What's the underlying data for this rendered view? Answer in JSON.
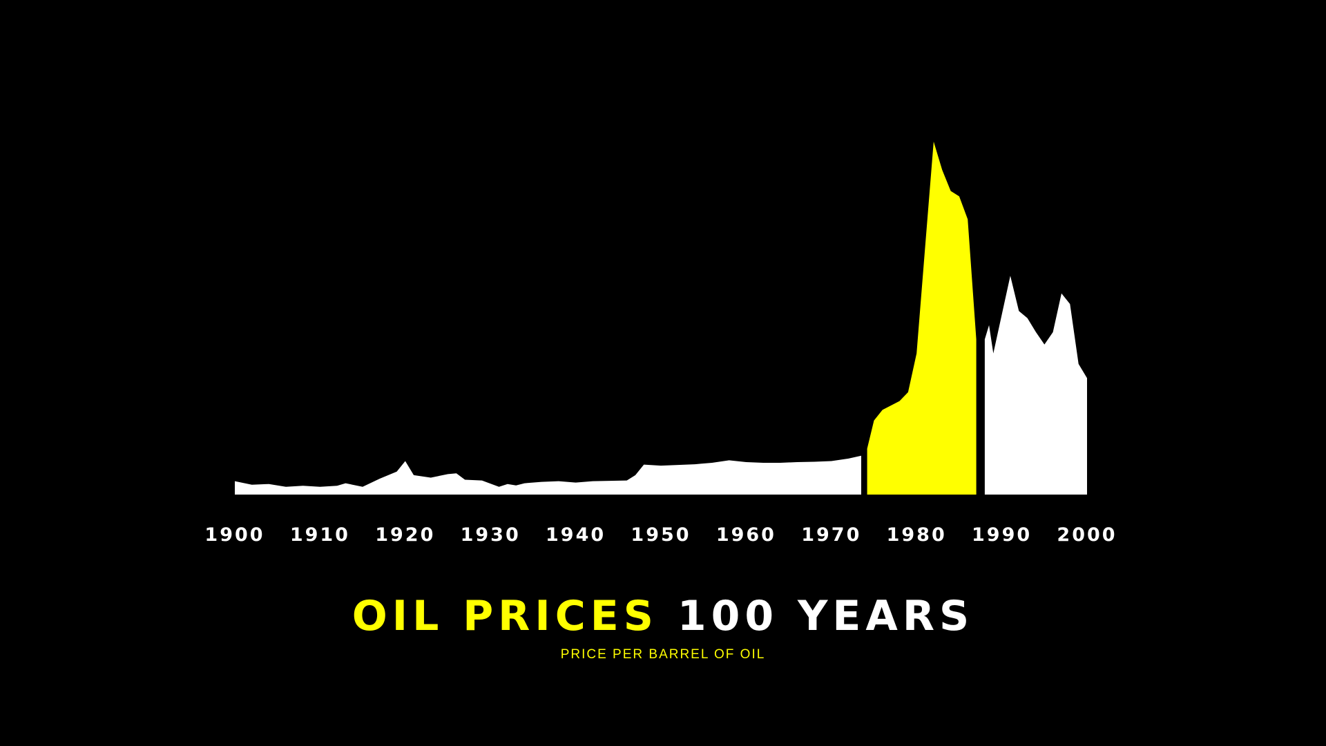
{
  "title": {
    "highlight": "OIL PRICES",
    "rest": "100 YEARS"
  },
  "subtitle": "PRICE PER BARREL OF OIL",
  "colors": {
    "background": "#000000",
    "base_fill": "#ffffff",
    "highlight_fill": "#ffff00",
    "title_highlight": "#ffff00",
    "title_rest": "#ffffff",
    "tick_labels": "#ffffff",
    "subtitle": "#ffff00"
  },
  "chart_data": {
    "type": "area",
    "title": "OIL PRICES 100 YEARS",
    "subtitle": "PRICE PER BARREL OF OIL",
    "xlabel": "",
    "ylabel": "",
    "x_ticks": [
      1900,
      1910,
      1920,
      1930,
      1940,
      1950,
      1960,
      1970,
      1980,
      1990,
      2000
    ],
    "xlim": [
      1900,
      2000
    ],
    "ylim": [
      0,
      100
    ],
    "grid": false,
    "legend": "none",
    "segments": [
      {
        "color": "#ffffff",
        "points": [
          [
            1900,
            3.8
          ],
          [
            1902,
            2.8
          ],
          [
            1904,
            3.0
          ],
          [
            1906,
            2.2
          ],
          [
            1908,
            2.5
          ],
          [
            1910,
            2.2
          ],
          [
            1912,
            2.5
          ],
          [
            1913,
            3.2
          ],
          [
            1915,
            2.2
          ],
          [
            1917,
            4.5
          ],
          [
            1919,
            6.5
          ],
          [
            1920,
            9.5
          ],
          [
            1921,
            5.5
          ],
          [
            1923,
            4.8
          ],
          [
            1925,
            5.8
          ],
          [
            1926,
            6.0
          ],
          [
            1927,
            4.2
          ],
          [
            1929,
            4.0
          ],
          [
            1931,
            2.2
          ],
          [
            1932,
            3.0
          ],
          [
            1933,
            2.6
          ],
          [
            1934,
            3.2
          ],
          [
            1936,
            3.6
          ],
          [
            1938,
            3.8
          ],
          [
            1940,
            3.4
          ],
          [
            1942,
            3.8
          ],
          [
            1944,
            3.9
          ],
          [
            1946,
            4.0
          ],
          [
            1947,
            5.5
          ],
          [
            1948,
            8.5
          ],
          [
            1950,
            8.2
          ],
          [
            1952,
            8.4
          ],
          [
            1954,
            8.6
          ],
          [
            1955,
            8.8
          ],
          [
            1956,
            9.0
          ],
          [
            1958,
            9.7
          ],
          [
            1960,
            9.2
          ],
          [
            1962,
            9.0
          ],
          [
            1964,
            9.0
          ],
          [
            1966,
            9.2
          ],
          [
            1968,
            9.3
          ],
          [
            1970,
            9.5
          ],
          [
            1972,
            10.2
          ],
          [
            1973.5,
            11.0
          ]
        ]
      },
      {
        "color": "#ffff00",
        "points": [
          [
            1974.2,
            13.0
          ],
          [
            1975,
            21.0
          ],
          [
            1976,
            24.0
          ],
          [
            1978,
            26.5
          ],
          [
            1979,
            29.0
          ],
          [
            1980,
            40.0
          ],
          [
            1981,
            70.0
          ],
          [
            1982,
            100.0
          ],
          [
            1983,
            92.0
          ],
          [
            1984,
            86.0
          ],
          [
            1985,
            84.5
          ],
          [
            1986,
            78.0
          ],
          [
            1987,
            44.0
          ]
        ]
      },
      {
        "color": "#ffffff",
        "points": [
          [
            1988,
            44.0
          ],
          [
            1988.5,
            48.0
          ],
          [
            1989,
            40.0
          ],
          [
            1990,
            51.0
          ],
          [
            1991,
            62.0
          ],
          [
            1992,
            52.0
          ],
          [
            1993,
            50.0
          ],
          [
            1994,
            46.0
          ],
          [
            1995,
            42.5
          ],
          [
            1996,
            46.0
          ],
          [
            1997,
            57.0
          ],
          [
            1998,
            54.0
          ],
          [
            1999,
            37.0
          ],
          [
            2000,
            33.0
          ]
        ]
      }
    ]
  }
}
